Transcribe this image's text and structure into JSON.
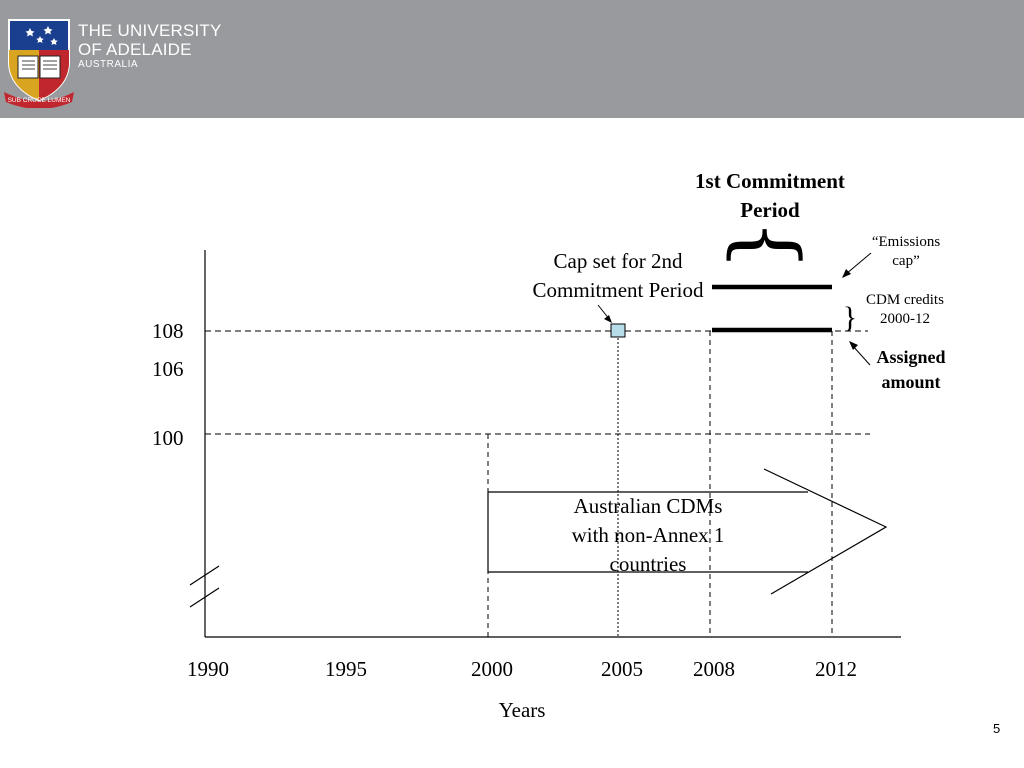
{
  "header": {
    "university_line1": "THE UNIVERSITY",
    "university_line2": "OF ADELAIDE",
    "university_line3": "AUSTRALIA",
    "motto": "SUB CRUCE LUMEN",
    "bar_color": "#999a9e"
  },
  "diagram": {
    "y_ticks": [
      "108",
      "106",
      "100"
    ],
    "x_ticks": [
      "1990",
      "1995",
      "2000",
      "2005",
      "2008",
      "2012"
    ],
    "x_axis_label": "Years",
    "period_title_line1": "1st Commitment",
    "period_title_line2": "Period",
    "cap_label_line1": "Cap set for 2nd",
    "cap_label_line2": "Commitment Period",
    "emissions_cap_line1": "“Emissions",
    "emissions_cap_line2": "cap”",
    "cdm_credits_line1": "CDM credits",
    "cdm_credits_line2": "2000-12",
    "assigned_line1": "Assigned",
    "assigned_line2": "amount",
    "arrow_text_line1": "Australian CDMs",
    "arrow_text_line2": "with non-Annex 1",
    "arrow_text_line3": "countries",
    "cap_marker_color": "#b7dde8"
  },
  "footer": {
    "page_number": "5"
  }
}
